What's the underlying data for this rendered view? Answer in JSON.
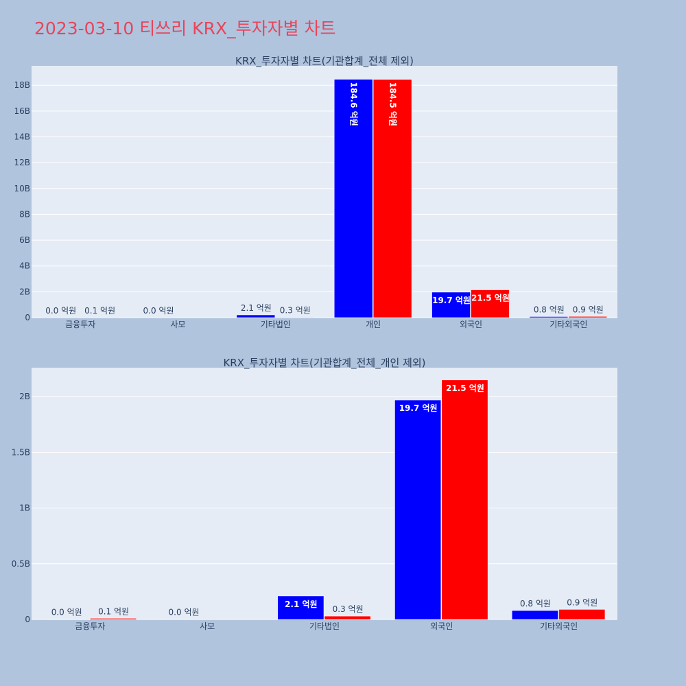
{
  "page": {
    "title": "2023-03-10 티쓰리 KRX_투자자별 차트"
  },
  "colors": {
    "series_a": "#0000ff",
    "series_b": "#ff0000",
    "plot_bg": "#e5ecf6",
    "page_bg": "#b0c4de",
    "title": "#e8445a"
  },
  "chart_data": [
    {
      "type": "bar",
      "title": "KRX_투자자별 차트(기관합계_전체 제외)",
      "categories": [
        "금융투자",
        "사모",
        "기타법인",
        "개인",
        "외국인",
        "기타외국인"
      ],
      "series": [
        {
          "values": [
            3000000,
            2000000,
            210000000,
            18460000000,
            1970000000,
            80000000
          ],
          "labels": [
            "0.0 억원",
            "0.0 억원",
            "2.1 억원",
            "184.6 억원",
            "19.7 억원",
            "0.8 억원"
          ]
        },
        {
          "values": [
            10000000,
            0,
            30000000,
            18450000000,
            2150000000,
            90000000
          ],
          "labels": [
            "0.1 억원",
            "",
            "0.3 억원",
            "184.5 억원",
            "21.5 억원",
            "0.9 억원"
          ]
        }
      ],
      "ylim": [
        0,
        19500000000
      ],
      "yticks": [
        0,
        2000000000,
        4000000000,
        6000000000,
        8000000000,
        10000000000,
        12000000000,
        14000000000,
        16000000000,
        18000000000
      ],
      "ytick_labels": [
        "0",
        "2B",
        "4B",
        "6B",
        "8B",
        "10B",
        "12B",
        "14B",
        "16B",
        "18B"
      ],
      "grid": true
    },
    {
      "type": "bar",
      "title": "KRX_투자자별 차트(기관합계_전체_개인 제외)",
      "categories": [
        "금융투자",
        "사모",
        "기타법인",
        "외국인",
        "기타외국인"
      ],
      "series": [
        {
          "values": [
            3000000,
            2000000,
            210000000,
            1970000000,
            80000000
          ],
          "labels": [
            "0.0 억원",
            "0.0 억원",
            "2.1 억원",
            "19.7 억원",
            "0.8 억원"
          ]
        },
        {
          "values": [
            10000000,
            0,
            30000000,
            2150000000,
            90000000
          ],
          "labels": [
            "0.1 억원",
            "",
            "0.3 억원",
            "21.5 억원",
            "0.9 억원"
          ]
        }
      ],
      "ylim": [
        0,
        2260000000
      ],
      "yticks": [
        0,
        500000000,
        1000000000,
        1500000000,
        2000000000
      ],
      "ytick_labels": [
        "0",
        "0.5B",
        "1B",
        "1.5B",
        "2B"
      ],
      "grid": true
    }
  ]
}
